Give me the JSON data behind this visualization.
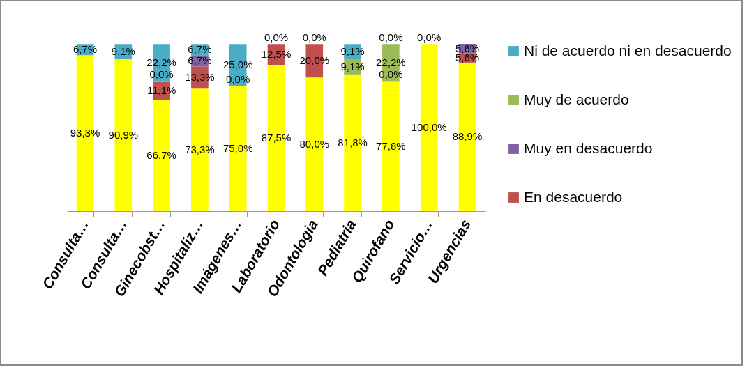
{
  "chart_data": {
    "type": "bar",
    "stacked": true,
    "legend": "right",
    "categories": [
      "Consulta…",
      "Consulta…",
      "Ginecobst…",
      "Hospitaliz…",
      "Imágenes…",
      "Laboratorio",
      "Odontologia",
      "Pediatria",
      "Quirofano",
      "Servicio…",
      "Urgencias"
    ],
    "series": [
      {
        "color": "#ffff00",
        "values": [
          93.3,
          90.9,
          66.7,
          73.3,
          75.0,
          87.5,
          80.0,
          81.8,
          77.8,
          100.0,
          88.9
        ],
        "value_labels": [
          "93,3%",
          "90,9%",
          "66,7%",
          "73,3%",
          "75,0%",
          "87,5%",
          "80,0%",
          "81,8%",
          "77,8%",
          "100,0%",
          "88,9%"
        ]
      },
      {
        "name": "En desacuerdo",
        "color": "#c0504d",
        "values": [
          0,
          0,
          11.1,
          13.3,
          0,
          12.5,
          20.0,
          0,
          0,
          0,
          5.6
        ],
        "value_labels": [
          null,
          null,
          "11,1%",
          "13,3%",
          null,
          "12,5%",
          "20,0%",
          null,
          null,
          null,
          "5,6%"
        ]
      },
      {
        "name": "Muy en desacuerdo",
        "color": "#8064a2",
        "values": [
          0,
          0,
          0,
          6.7,
          0,
          0,
          0,
          0,
          0,
          0,
          5.6
        ],
        "value_labels": [
          null,
          null,
          null,
          "6,7%",
          null,
          null,
          null,
          null,
          "0,0%",
          null,
          "5,6%"
        ]
      },
      {
        "name": "Muy de acuerdo",
        "color": "#9bbb59",
        "values": [
          0,
          0,
          0,
          0,
          0,
          0,
          0,
          9.1,
          22.2,
          0,
          0
        ],
        "value_labels": [
          null,
          null,
          "0,0%",
          null,
          "0,0%",
          null,
          null,
          "9,1%",
          "22,2%",
          null,
          null
        ]
      },
      {
        "name": "Ni de acuerdo ni en desacuerdo",
        "color": "#4bacc6",
        "values": [
          6.7,
          9.1,
          22.2,
          6.7,
          25.0,
          0,
          0,
          9.1,
          0,
          0,
          0
        ],
        "value_labels": [
          "6,7%",
          "9,1%",
          "22,2%",
          "6,7%",
          "25,0%",
          "0,0%",
          "0,0%",
          "9,1%",
          "0,0%",
          "0,0%",
          null
        ]
      }
    ]
  }
}
